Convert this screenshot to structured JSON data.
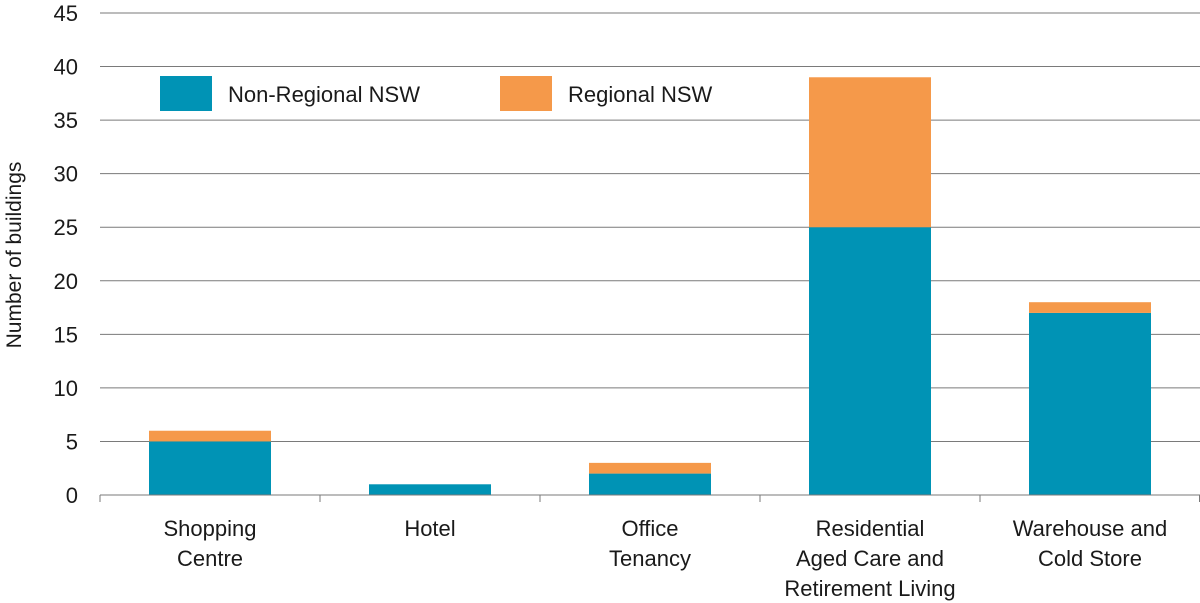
{
  "chart_data": {
    "type": "bar",
    "stacked": true,
    "title": "",
    "xlabel": "",
    "ylabel": "Number of buildings",
    "ylim": [
      0,
      45
    ],
    "yticks": [
      0,
      5,
      10,
      15,
      20,
      25,
      30,
      35,
      40,
      45
    ],
    "grid": true,
    "legend_position": "top-left",
    "categories": [
      [
        "Shopping",
        "Centre"
      ],
      [
        "Hotel"
      ],
      [
        "Office",
        "Tenancy"
      ],
      [
        "Residential",
        "Aged Care and",
        "Retirement Living"
      ],
      [
        "Warehouse and",
        "Cold Store"
      ]
    ],
    "series": [
      {
        "name": "Non-Regional NSW",
        "color": "#0093b5",
        "values": [
          5,
          1,
          2,
          25,
          17
        ]
      },
      {
        "name": "Regional NSW",
        "color": "#f5994a",
        "values": [
          1,
          0,
          1,
          14,
          1
        ]
      }
    ]
  }
}
